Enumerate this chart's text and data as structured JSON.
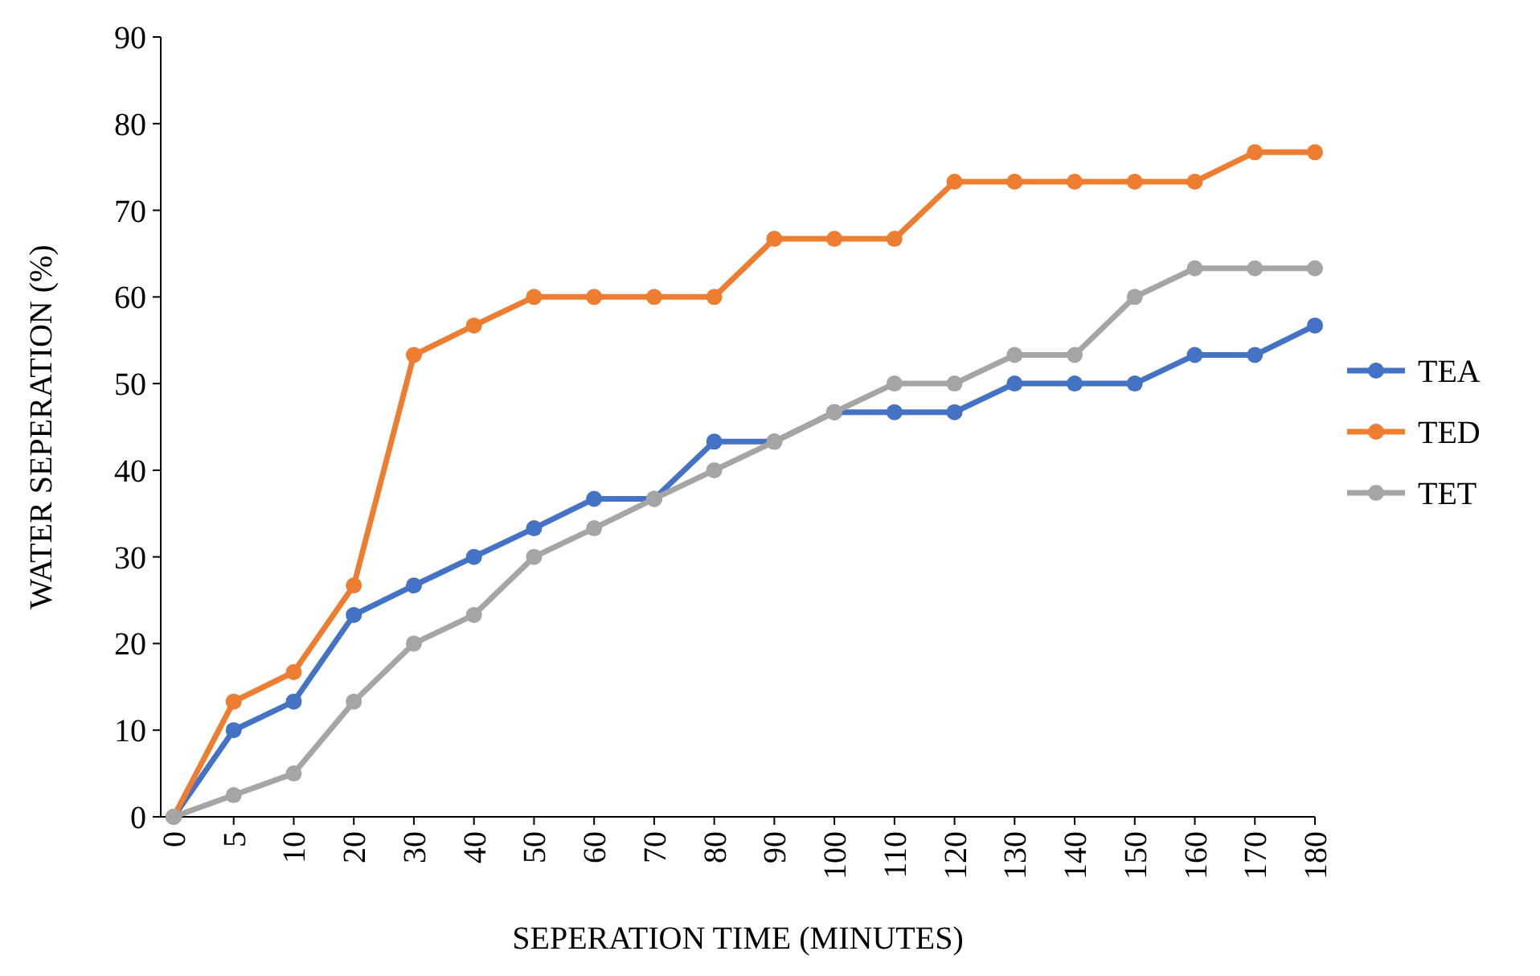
{
  "chart_data": {
    "type": "line",
    "xlabel": "SEPERATION TIME (MINUTES)",
    "ylabel": "WATER SEPERATION (%)",
    "categories": [
      "0",
      "5",
      "10",
      "20",
      "30",
      "40",
      "50",
      "60",
      "70",
      "80",
      "90",
      "100",
      "110",
      "120",
      "130",
      "140",
      "150",
      "160",
      "170",
      "180"
    ],
    "series": [
      {
        "name": "TEA",
        "color": "#4472c4",
        "values": [
          0,
          10,
          13.3,
          23.3,
          26.7,
          30,
          33.3,
          36.7,
          36.7,
          43.3,
          43.3,
          46.7,
          46.7,
          46.7,
          50,
          50,
          50,
          53.3,
          53.3,
          56.7
        ]
      },
      {
        "name": "TED",
        "color": "#ed7d31",
        "values": [
          0,
          13.3,
          16.7,
          26.7,
          53.3,
          56.7,
          60,
          60,
          60,
          60,
          66.7,
          66.7,
          66.7,
          73.3,
          73.3,
          73.3,
          73.3,
          73.3,
          76.7,
          76.7
        ]
      },
      {
        "name": "TET",
        "color": "#a5a5a5",
        "values": [
          0,
          2.5,
          5,
          13.3,
          20,
          23.3,
          30,
          33.3,
          36.7,
          40,
          43.3,
          46.7,
          50,
          50,
          53.3,
          53.3,
          60,
          63.3,
          63.3,
          63.3
        ]
      }
    ],
    "ylim": [
      0,
      90
    ],
    "yticks": [
      0,
      10,
      20,
      30,
      40,
      50,
      60,
      70,
      80,
      90
    ],
    "grid": false,
    "legend": "right",
    "marker": "circle",
    "line_style": "solid"
  }
}
